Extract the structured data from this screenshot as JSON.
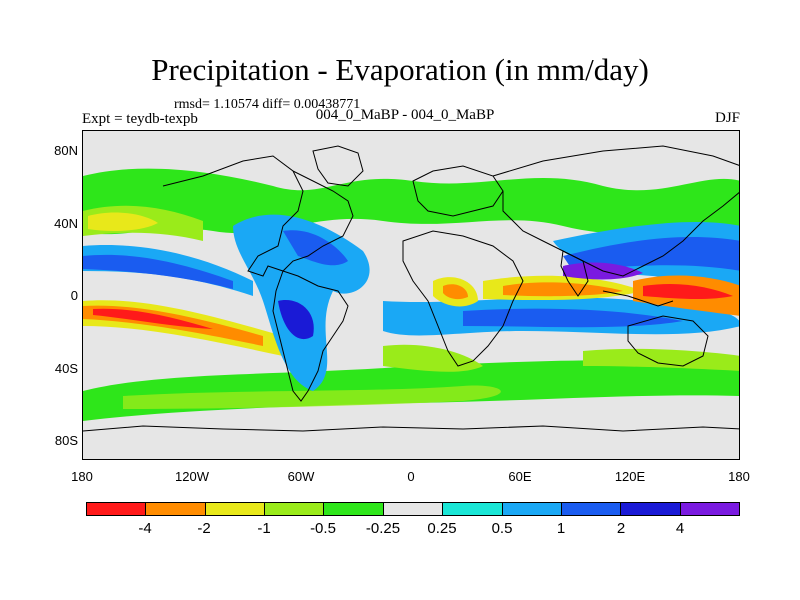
{
  "title": "Precipitation - Evaporation (in mm/day)",
  "stats": "rmsd= 1.10574  diff= 0.00438771",
  "experiment": "Expt = teydb-texpb",
  "cases": "004_0_MaBP - 004_0_MaBP",
  "season": "DJF",
  "axes": {
    "y_labels": [
      "80N",
      "40N",
      "0",
      "40S",
      "80S"
    ],
    "x_labels": [
      "180",
      "120W",
      "60W",
      "0",
      "60E",
      "120E",
      "180"
    ]
  },
  "colorbar": {
    "colors": [
      "#ff1a1a",
      "#ff8c00",
      "#e8e81a",
      "#9aeb1a",
      "#2ee61a",
      "#e6e6e6",
      "#1ae6d6",
      "#1aa8f5",
      "#1a5cf0",
      "#1a1ad6",
      "#7a1ae0"
    ],
    "labels": [
      "-4",
      "-2",
      "-1",
      "-0.5",
      "-0.25",
      "0.25",
      "0.5",
      "1",
      "2",
      "4"
    ]
  },
  "colors": {
    "background": "#e6e6e6",
    "coastline": "#000000"
  }
}
